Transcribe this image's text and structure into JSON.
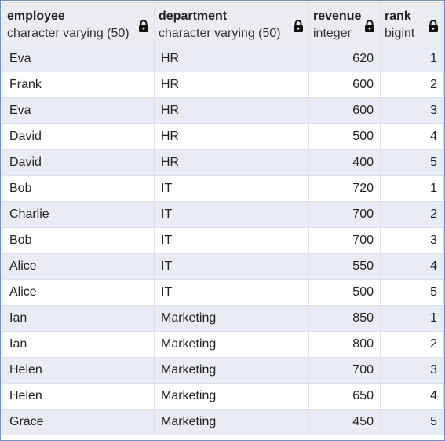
{
  "columns": [
    {
      "name": "employee",
      "type": "character varying (50)",
      "lock": "lock-icon"
    },
    {
      "name": "department",
      "type": "character varying (50)",
      "lock": "lock-icon"
    },
    {
      "name": "revenue",
      "type": "integer",
      "lock": "lock-icon"
    },
    {
      "name": "rank",
      "type": "bigint",
      "lock": "lock-icon"
    }
  ],
  "rows": [
    {
      "employee": "Eva",
      "department": "HR",
      "revenue": "620",
      "rank": "1"
    },
    {
      "employee": "Frank",
      "department": "HR",
      "revenue": "600",
      "rank": "2"
    },
    {
      "employee": "Eva",
      "department": "HR",
      "revenue": "600",
      "rank": "3"
    },
    {
      "employee": "David",
      "department": "HR",
      "revenue": "500",
      "rank": "4"
    },
    {
      "employee": "David",
      "department": "HR",
      "revenue": "400",
      "rank": "5"
    },
    {
      "employee": "Bob",
      "department": "IT",
      "revenue": "720",
      "rank": "1"
    },
    {
      "employee": "Charlie",
      "department": "IT",
      "revenue": "700",
      "rank": "2"
    },
    {
      "employee": "Bob",
      "department": "IT",
      "revenue": "700",
      "rank": "3"
    },
    {
      "employee": "Alice",
      "department": "IT",
      "revenue": "550",
      "rank": "4"
    },
    {
      "employee": "Alice",
      "department": "IT",
      "revenue": "500",
      "rank": "5"
    },
    {
      "employee": "Ian",
      "department": "Marketing",
      "revenue": "850",
      "rank": "1"
    },
    {
      "employee": "Ian",
      "department": "Marketing",
      "revenue": "800",
      "rank": "2"
    },
    {
      "employee": "Helen",
      "department": "Marketing",
      "revenue": "700",
      "rank": "3"
    },
    {
      "employee": "Helen",
      "department": "Marketing",
      "revenue": "650",
      "rank": "4"
    },
    {
      "employee": "Grace",
      "department": "Marketing",
      "revenue": "450",
      "rank": "5"
    }
  ],
  "colors": {
    "header_bg": "#ebedf3",
    "row_alt_bg": "#eaecf3",
    "row_bg": "#ffffff",
    "border": "#6f8fc4"
  }
}
